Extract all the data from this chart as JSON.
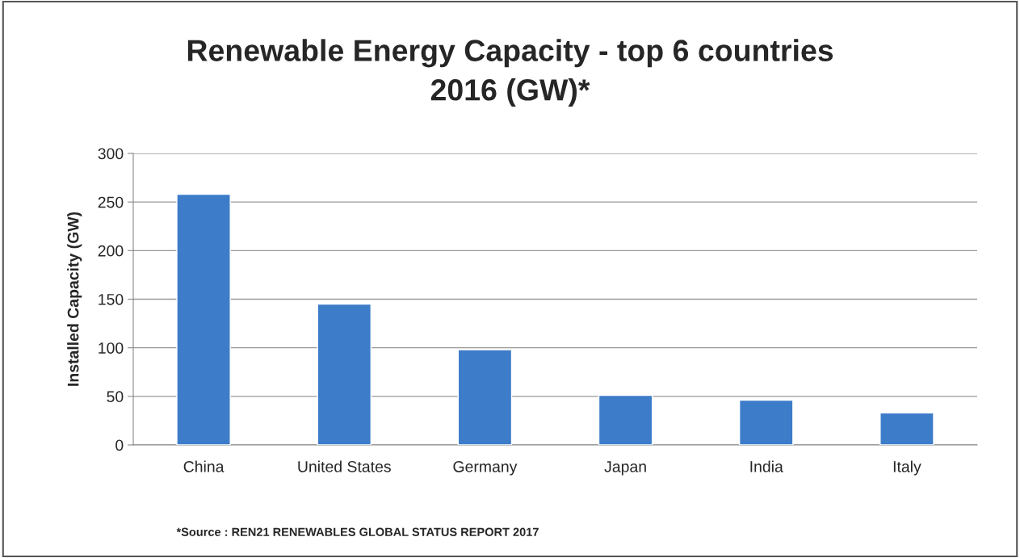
{
  "chart_data": {
    "type": "bar",
    "title": "Renewable Energy Capacity - top 6 countries\n2016 (GW)*",
    "ylabel": "Installed Capacity (GW)",
    "categories": [
      "China",
      "United States",
      "Germany",
      "Japan",
      "India",
      "Italy"
    ],
    "values": [
      258,
      145,
      98,
      51,
      46,
      33
    ],
    "color": "#3d7cc9",
    "ylim": [
      0,
      300
    ],
    "yticks": [
      0,
      50,
      100,
      150,
      200,
      250,
      300
    ],
    "grid": "y",
    "annotations": [
      "*Source : REN21 RENEWABLES GLOBAL STATUS REPORT 2017"
    ]
  }
}
